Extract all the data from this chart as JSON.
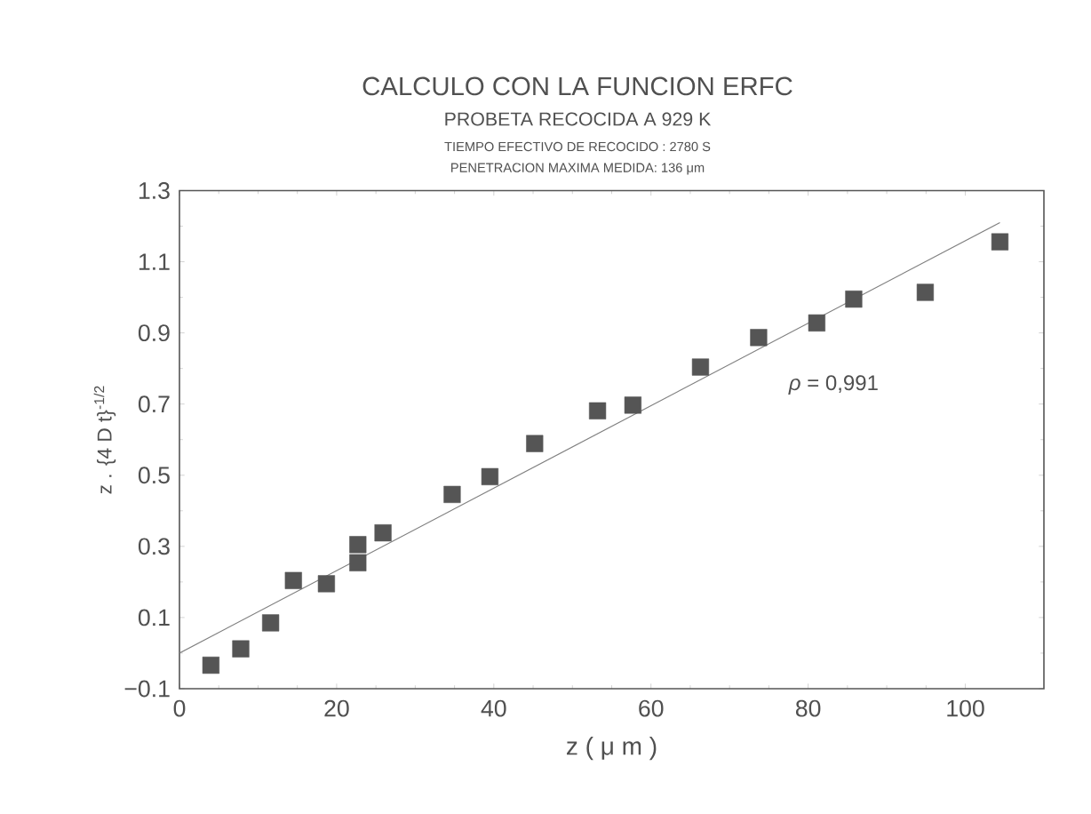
{
  "chart_data": {
    "type": "scatter",
    "title": "CALCULO CON LA FUNCION ERFC",
    "subtitle": "PROBETA RECOCIDA A 929 K",
    "xlabel": "z ( μ m )",
    "ylabel": "z . {4 D t}$^{-1/2}$",
    "annotations": [
      "TIEMPO EFECTIVO DE RECOCIDO : 2780 S",
      "PENETRACION MAXIMA MEDIDA: 136 μm",
      "*ρ* = 0,991"
    ],
    "xlim": [
      0,
      110
    ],
    "ylim": [
      -0.1,
      1.3
    ],
    "xticks": [
      0,
      20,
      40,
      60,
      80,
      100
    ],
    "yticks": [
      {
        "value": -0.1,
        "label": "−0.1"
      },
      0.1,
      0.3,
      0.5,
      0.7,
      0.9,
      1.1,
      1.3
    ],
    "grid": false,
    "marker": "square",
    "series": [
      {
        "color": "#555555",
        "x": [
          4.0,
          7.8,
          11.6,
          14.5,
          18.7,
          22.7,
          22.7,
          25.9,
          34.7,
          39.5,
          45.2,
          53.2,
          57.7,
          66.3,
          73.7,
          81.1,
          85.8,
          94.9,
          104.4
        ],
        "values": [
          -0.034,
          0.012,
          0.085,
          0.204,
          0.195,
          0.254,
          0.305,
          0.338,
          0.446,
          0.496,
          0.589,
          0.681,
          0.697,
          0.804,
          0.887,
          0.928,
          0.995,
          1.014,
          1.156
        ]
      },
      {
        "type": "line",
        "color": "#808080",
        "marker": "none",
        "line_style": "solid",
        "x": [
          0,
          104.4
        ],
        "values": [
          0.0,
          1.21
        ]
      }
    ]
  }
}
